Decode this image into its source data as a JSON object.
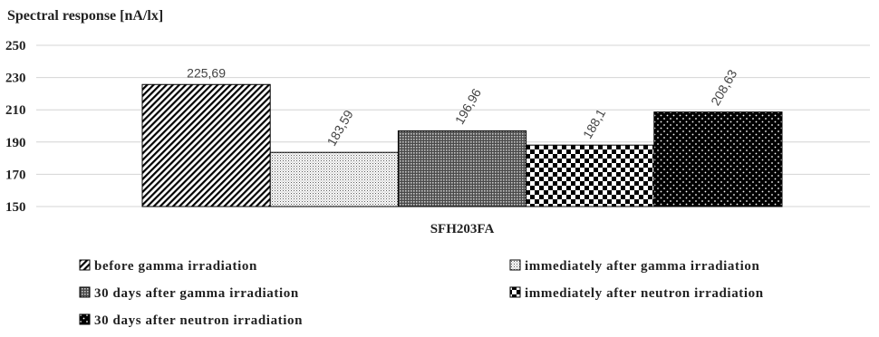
{
  "chart_data": {
    "type": "bar",
    "ylabel": "Spectral response [nA/lx]",
    "categories": [
      "SFH203FA"
    ],
    "ylim": [
      150,
      250
    ],
    "yticks": [
      "150",
      "170",
      "190",
      "210",
      "230",
      "250"
    ],
    "grid": true,
    "legend_position": "bottom",
    "series": [
      {
        "name": "before gamma irradiation",
        "values": [
          225.69
        ],
        "label": "225,69",
        "pattern": "diagonal-hatch",
        "label_rotated": false
      },
      {
        "name": "immediately after gamma irradiation",
        "values": [
          183.59
        ],
        "label": "183,59",
        "pattern": "fine-dots",
        "label_rotated": true
      },
      {
        "name": "30 days after gamma irradiation",
        "values": [
          196.96
        ],
        "label": "196,96",
        "pattern": "dense-grid",
        "label_rotated": true
      },
      {
        "name": "immediately after neutron irradiation",
        "values": [
          188.1
        ],
        "label": "188,1",
        "pattern": "checkerboard",
        "label_rotated": true
      },
      {
        "name": "30 days after neutron irradiation",
        "values": [
          208.63
        ],
        "label": "208,63",
        "pattern": "black-with-white-dots",
        "label_rotated": true
      }
    ]
  }
}
